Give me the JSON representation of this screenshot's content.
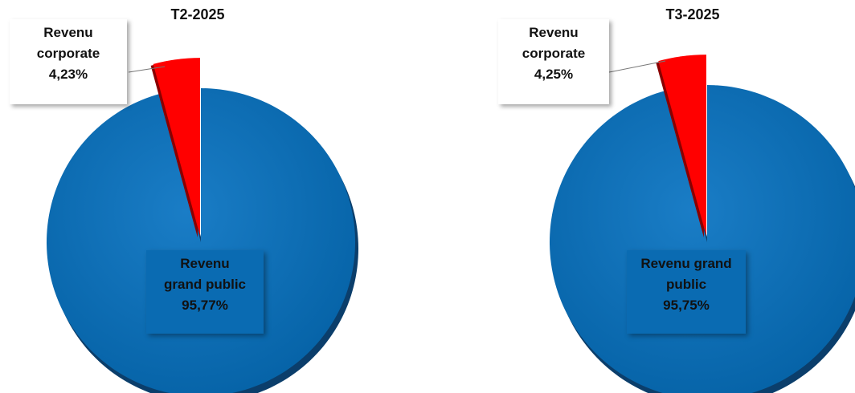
{
  "chart_data": [
    {
      "type": "pie",
      "title": "T2-2025",
      "slices": [
        {
          "label": "Revenu corporate",
          "value": 4.23,
          "display": "4,23%",
          "color": "#ff0000"
        },
        {
          "label": "Revenu grand public",
          "value": 95.77,
          "display": "95,77%",
          "color": "#0a6bb2"
        }
      ],
      "label_lines": {
        "corporate": [
          "Revenu",
          "corporate",
          "4,23%"
        ],
        "public": [
          "Revenu",
          "grand public",
          "95,77%"
        ]
      }
    },
    {
      "type": "pie",
      "title": "T3-2025",
      "slices": [
        {
          "label": "Revenu corporate",
          "value": 4.25,
          "display": "4,25%",
          "color": "#ff0000"
        },
        {
          "label": "Revenu grand public",
          "value": 95.75,
          "display": "95,75%",
          "color": "#0a6bb2"
        }
      ],
      "label_lines": {
        "corporate": [
          "Revenu",
          "corporate",
          "4,25%"
        ],
        "public": [
          "Revenu grand",
          "public",
          "95,75%"
        ]
      }
    }
  ]
}
